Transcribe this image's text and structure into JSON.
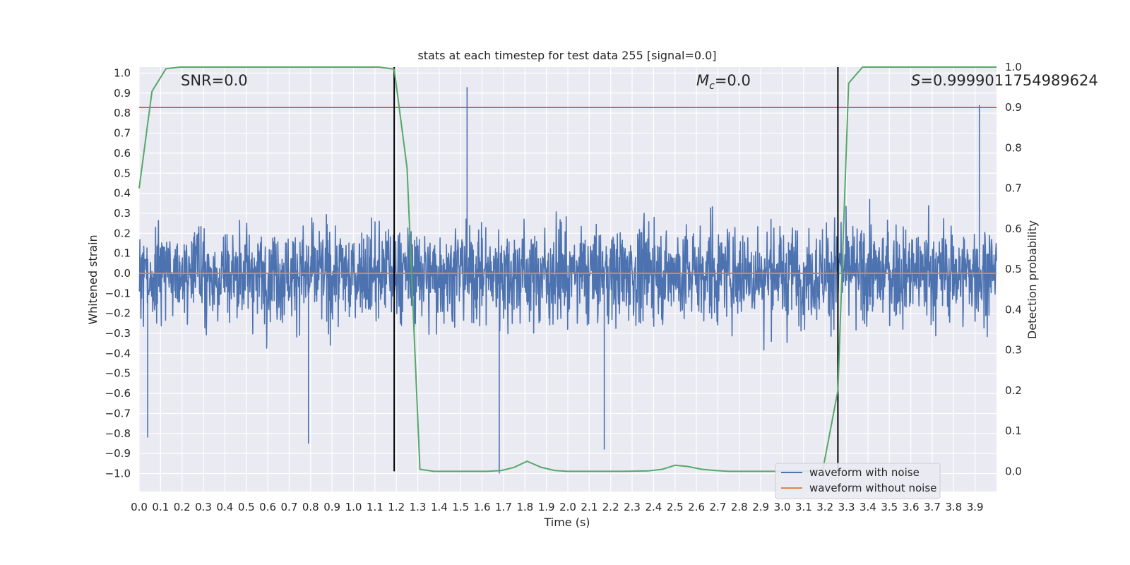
{
  "chart_data": {
    "type": "line",
    "title": "stats at each timestep for test data 255 [signal=0.0]",
    "xlabel": "Time (s)",
    "ylabel": "Whitened strain",
    "ylabel_right": "Detection probability",
    "xlim": [
      0.0,
      4.0
    ],
    "ylim": [
      -1.09,
      1.03
    ],
    "ylim_right": [
      -0.05,
      1.0
    ],
    "x_ticks": [
      "0.0",
      "0.1",
      "0.2",
      "0.3",
      "0.4",
      "0.5",
      "0.6",
      "0.7",
      "0.8",
      "0.9",
      "1.0",
      "1.1",
      "1.2",
      "1.3",
      "1.4",
      "1.5",
      "1.6",
      "1.7",
      "1.8",
      "1.9",
      "2.0",
      "2.1",
      "2.2",
      "2.3",
      "2.4",
      "2.5",
      "2.6",
      "2.7",
      "2.8",
      "2.9",
      "3.0",
      "3.1",
      "3.2",
      "3.3",
      "3.4",
      "3.5",
      "3.6",
      "3.7",
      "3.8",
      "3.9"
    ],
    "y_ticks": [
      "1.0",
      "0.9",
      "0.8",
      "0.7",
      "0.6",
      "0.5",
      "0.4",
      "0.3",
      "0.2",
      "0.1",
      "0.0",
      "−0.1",
      "−0.2",
      "−0.3",
      "−0.4",
      "−0.5",
      "−0.6",
      "−0.7",
      "−0.8",
      "−0.9",
      "−1.0"
    ],
    "y_ticks_right": [
      "1.0",
      "0.9",
      "0.8",
      "0.7",
      "0.6",
      "0.5",
      "0.4",
      "0.3",
      "0.2",
      "0.1",
      "0.0"
    ],
    "annotations": {
      "snr": "SNR=0.0",
      "mc_symbol": "M",
      "mc_sub": "c",
      "mc_value": "=0.0",
      "s_symbol": "S",
      "s_value": "=0.9999011754989624"
    },
    "threshold_probability": 0.9,
    "vertical_markers_x": [
      1.19,
      3.26
    ],
    "detection_probability": {
      "x": [
        0.0,
        0.06,
        0.125,
        0.19,
        0.25,
        1.0,
        1.12,
        1.19,
        1.25,
        1.31,
        1.375,
        1.44,
        1.5,
        1.56,
        1.625,
        1.69,
        1.75,
        1.81,
        1.875,
        1.94,
        2.0,
        2.125,
        2.25,
        2.375,
        2.44,
        2.5,
        2.56,
        2.625,
        2.69,
        2.75,
        2.875,
        3.0,
        3.125,
        3.19,
        3.26,
        3.31,
        3.375,
        3.44,
        3.5,
        3.75,
        4.0
      ],
      "y": [
        0.7,
        0.94,
        0.996,
        1.0,
        1.0,
        1.0,
        1.0,
        0.995,
        0.75,
        0.005,
        0.0,
        0.0,
        0.0,
        0.0,
        0.0,
        0.002,
        0.01,
        0.025,
        0.01,
        0.002,
        0.0,
        0.0,
        0.0,
        0.001,
        0.005,
        0.015,
        0.012,
        0.005,
        0.002,
        0.0,
        0.0,
        0.0,
        0.0,
        0.005,
        0.2,
        0.96,
        1.0,
        1.0,
        1.0,
        1.0,
        1.0
      ]
    },
    "series": [
      {
        "name": "waveform with noise",
        "color": "#4c72b0",
        "description_of_shape": "dense noise",
        "amplitude_envelope": 0.8,
        "notable_extremes": [
          {
            "x": 0.04,
            "y": -0.82
          },
          {
            "x": 0.79,
            "y": -0.85
          },
          {
            "x": 1.53,
            "y": 0.93
          },
          {
            "x": 1.68,
            "y": -1.0
          },
          {
            "x": 2.17,
            "y": -0.88
          },
          {
            "x": 3.92,
            "y": 0.84
          }
        ]
      },
      {
        "name": "waveform without noise",
        "color": "#dd8452",
        "constant_value": 0.0
      }
    ],
    "probability_color": "#55a868",
    "threshold_color": "#c44e52",
    "marker_color": "#000000",
    "grid": true,
    "legend_placement": "lower-right"
  }
}
